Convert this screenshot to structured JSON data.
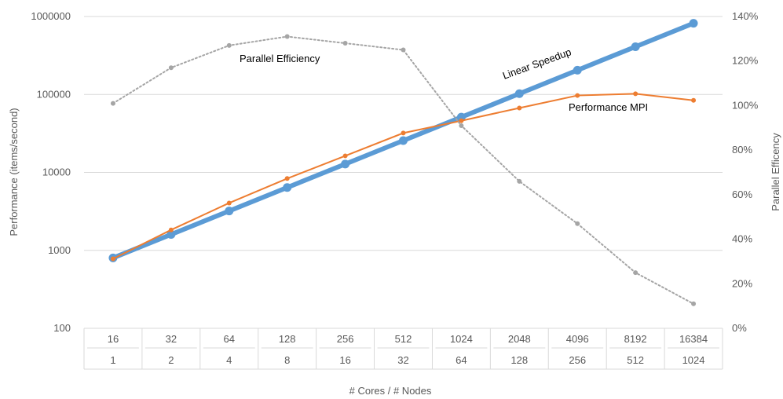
{
  "chart_data": {
    "type": "line",
    "title": "",
    "categories_levels": [
      [
        "16",
        "32",
        "64",
        "128",
        "256",
        "512",
        "1024",
        "2048",
        "4096",
        "8192",
        "16384"
      ],
      [
        "1",
        "2",
        "4",
        "8",
        "16",
        "32",
        "64",
        "128",
        "256",
        "512",
        "1024"
      ]
    ],
    "xlabel": "# Cores / # Nodes",
    "ylabel": "Performance (items/second)",
    "ylabel_right": "Parallel Efficency",
    "y_scale": "log",
    "ylim": [
      100,
      1000000
    ],
    "y_ticks": [
      "100",
      "1000",
      "10000",
      "100000",
      "1000000"
    ],
    "y2lim": [
      0,
      140
    ],
    "y2_ticks": [
      "0%",
      "20%",
      "40%",
      "60%",
      "80%",
      "100%",
      "120%",
      "140%"
    ],
    "grid": true,
    "legend": "none",
    "series": [
      {
        "name": "Linear Speedup",
        "axis": "left",
        "color": "#5b9bd5",
        "values": [
          800,
          1600,
          3200,
          6400,
          12800,
          25600,
          51200,
          102400,
          204800,
          409600,
          819200
        ]
      },
      {
        "name": "Performance MPI",
        "axis": "left",
        "color": "#ed7d31",
        "values": [
          780,
          1830,
          4050,
          8350,
          16300,
          32000,
          46000,
          67000,
          97000,
          102000,
          84000
        ]
      },
      {
        "name": "Parallel Efficiency",
        "axis": "right",
        "color": "#a5a5a5",
        "values": [
          101,
          117,
          127,
          131,
          128,
          125,
          91,
          66,
          47,
          25,
          11
        ]
      }
    ]
  }
}
